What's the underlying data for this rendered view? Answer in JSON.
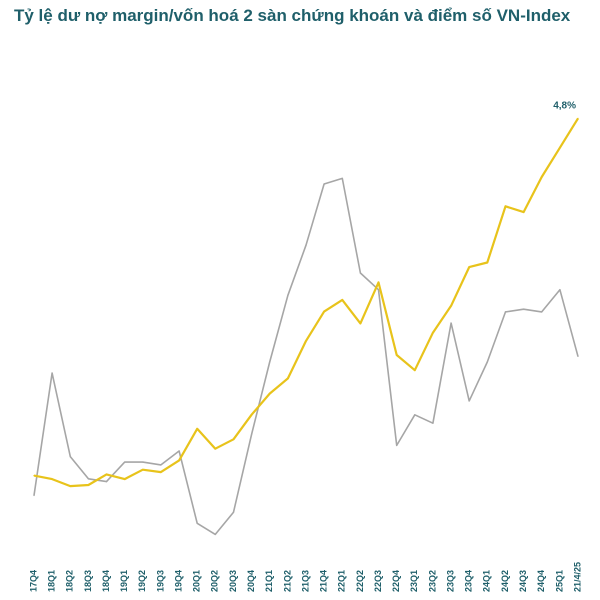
{
  "title": "Tỷ lệ dư nợ margin/vốn hoá 2 sàn chứng khoán và điểm số VN-Index",
  "chart_data": {
    "type": "line",
    "x_ticks": [
      "17Q4",
      "18Q1",
      "18Q2",
      "18Q3",
      "18Q4",
      "19Q1",
      "19Q2",
      "19Q3",
      "19Q4",
      "20Q1",
      "20Q2",
      "20Q3",
      "20Q4",
      "21Q1",
      "21Q2",
      "21Q3",
      "21Q4",
      "22Q1",
      "22Q2",
      "22Q3",
      "22Q4",
      "23Q1",
      "23Q2",
      "23Q3",
      "23Q4",
      "24Q1",
      "24Q2",
      "24Q3",
      "24Q4",
      "25Q1",
      "21/4/25"
    ],
    "grid": false,
    "legend": "none",
    "annotations": [
      {
        "text": "4,8%",
        "series": "margin_ratio",
        "x_index": 30
      }
    ],
    "series": [
      {
        "key": "margin_ratio",
        "color": "#e8c31b",
        "ylim": [
          1.2,
          5.0
        ],
        "values": [
          1.75,
          1.72,
          1.66,
          1.67,
          1.76,
          1.72,
          1.8,
          1.78,
          1.88,
          2.15,
          1.98,
          2.06,
          2.27,
          2.45,
          2.58,
          2.9,
          3.15,
          3.25,
          3.05,
          3.4,
          2.78,
          2.65,
          2.97,
          3.2,
          3.53,
          3.57,
          4.05,
          4.0,
          4.3,
          4.55,
          4.8
        ]
      },
      {
        "key": "vn_index",
        "color": "#a6a6a6",
        "ylim": [
          850,
          1650
        ],
        "values": [
          930,
          1150,
          1000,
          960,
          955,
          990,
          990,
          985,
          1010,
          880,
          860,
          900,
          1040,
          1170,
          1290,
          1380,
          1490,
          1500,
          1330,
          1300,
          1020,
          1075,
          1060,
          1240,
          1100,
          1170,
          1260,
          1265,
          1260,
          1300,
          1180
        ]
      }
    ]
  }
}
